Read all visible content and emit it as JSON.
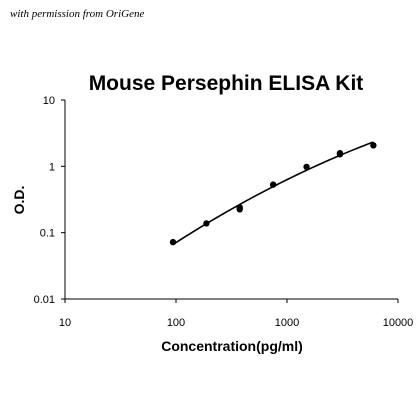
{
  "watermark": "with permission from OriGene",
  "chart_data": {
    "type": "scatter",
    "title": "Mouse Persephin ELISA Kit",
    "xlabel": "Concentration(pg/ml)",
    "ylabel": "O.D.",
    "x_scale": "log",
    "y_scale": "log",
    "xlim": [
      10,
      10000
    ],
    "ylim": [
      0.01,
      10
    ],
    "x_ticks": [
      "10",
      "100",
      "1000",
      "10000"
    ],
    "y_ticks": [
      "0.01",
      "0.1",
      "1",
      "10"
    ],
    "grid": false,
    "legend": "none",
    "series": [
      {
        "points": [
          {
            "x": 94,
            "y": 0.072
          },
          {
            "x": 188,
            "y": 0.138
          },
          {
            "x": 375,
            "y": 0.24
          },
          {
            "x": 375,
            "y": 0.225
          },
          {
            "x": 750,
            "y": 0.53
          },
          {
            "x": 1500,
            "y": 0.98
          },
          {
            "x": 3000,
            "y": 1.52
          },
          {
            "x": 3000,
            "y": 1.58
          },
          {
            "x": 6000,
            "y": 2.07
          }
        ],
        "fit_curve": true
      }
    ]
  }
}
